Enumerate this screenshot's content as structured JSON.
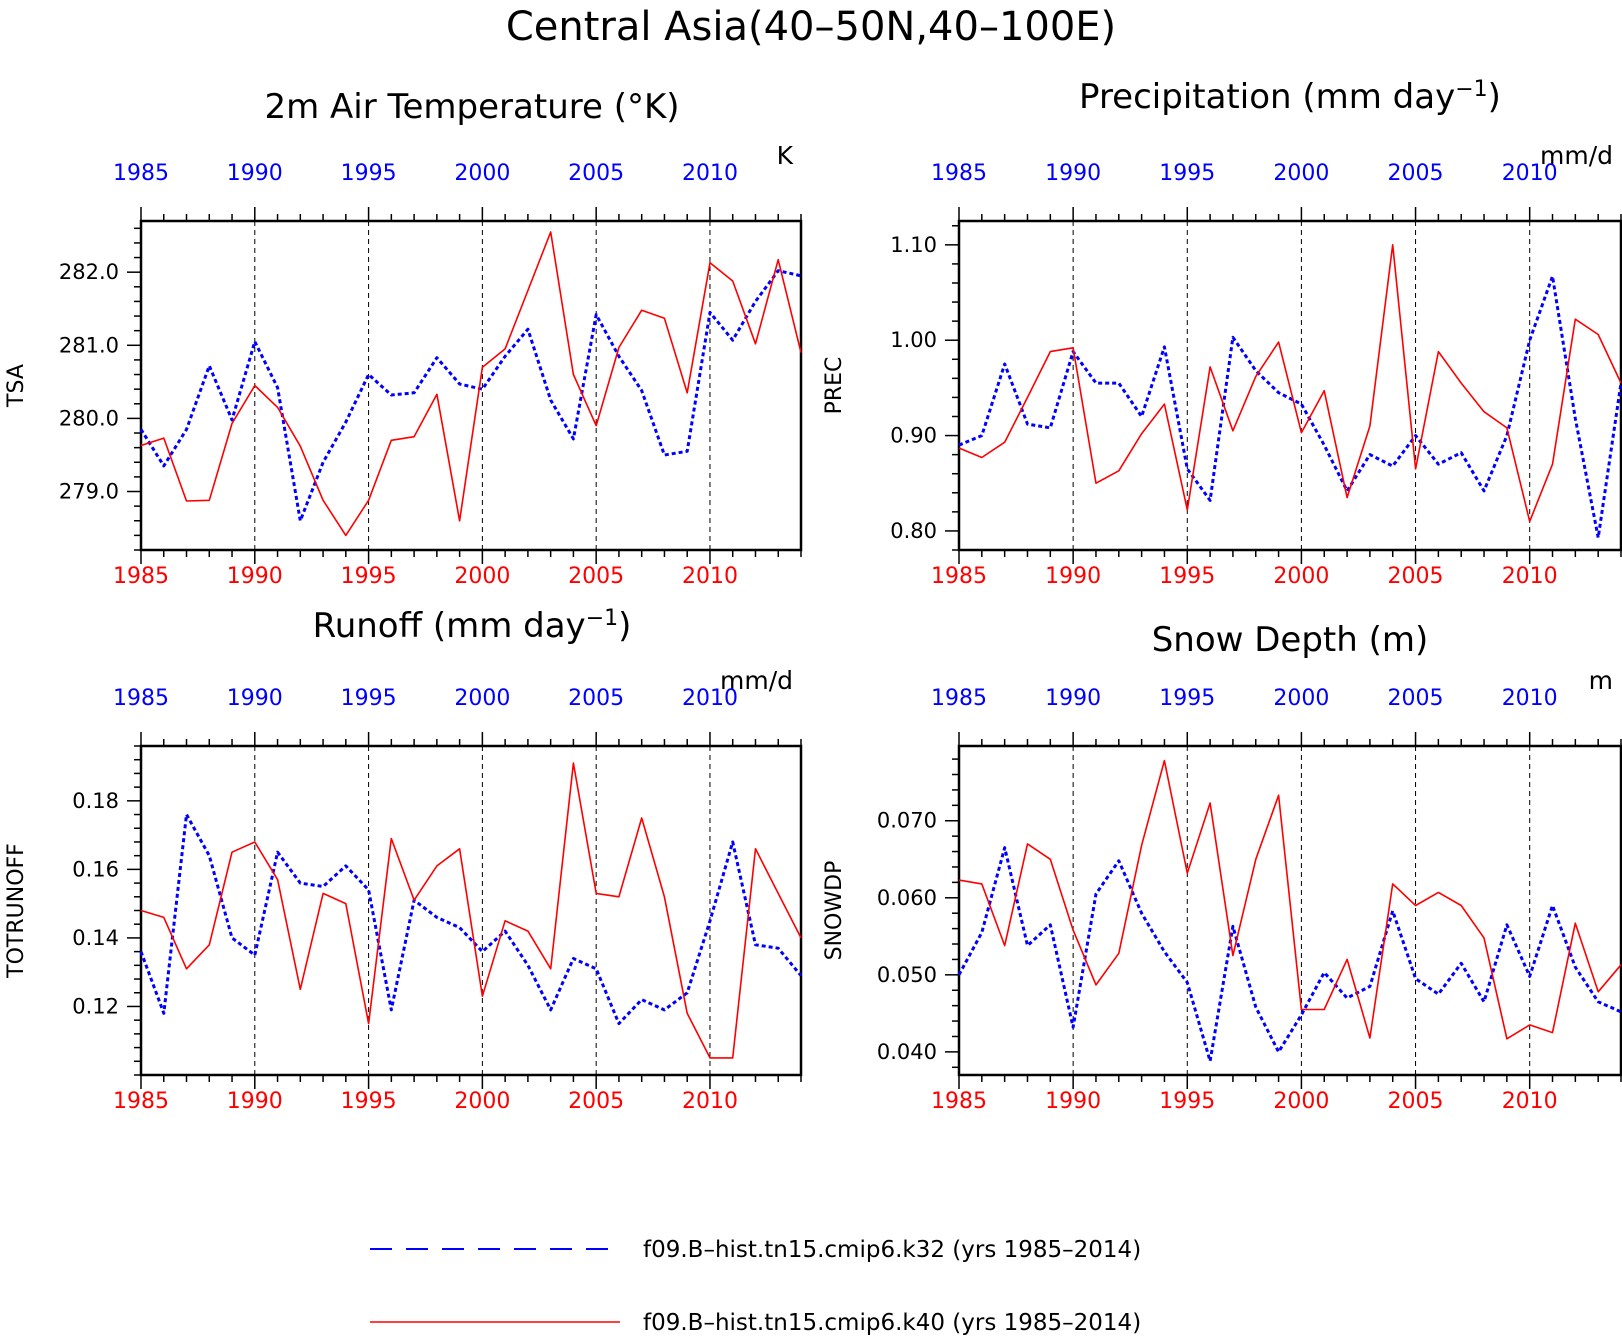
{
  "title": "Central Asia(40–50N,40–100E)",
  "colors": {
    "run_k32": "#0000ff",
    "run_k40": "#ff0000"
  },
  "legend": [
    {
      "label": "f09.B–hist.tn15.cmip6.k32 (yrs 1985–2014)",
      "color": "#0000ff",
      "style": "dashed"
    },
    {
      "label": "f09.B–hist.tn15.cmip6.k40 (yrs 1985–2014)",
      "color": "#ff0000",
      "style": "solid"
    }
  ],
  "chart_data": [
    {
      "type": "line",
      "title": "2m Air Temperature (°K)",
      "ylabel": "TSA",
      "unit": "K",
      "xlim": [
        1985,
        2014
      ],
      "ylim": [
        278.2,
        282.7
      ],
      "yticks": [
        "279.0",
        "280.0",
        "281.0",
        "282.0"
      ],
      "xticks": [
        "1985",
        "1990",
        "1995",
        "2000",
        "2005",
        "2010"
      ],
      "x": [
        1985,
        1986,
        1987,
        1988,
        1989,
        1990,
        1991,
        1992,
        1993,
        1994,
        1995,
        1996,
        1997,
        1998,
        1999,
        2000,
        2001,
        2002,
        2003,
        2004,
        2005,
        2006,
        2007,
        2008,
        2009,
        2010,
        2011,
        2012,
        2013,
        2014
      ],
      "series": [
        {
          "values": [
            279.85,
            279.35,
            279.85,
            280.72,
            279.98,
            281.05,
            280.42,
            278.6,
            279.4,
            279.95,
            280.6,
            280.32,
            280.35,
            280.83,
            280.47,
            280.4,
            280.85,
            281.22,
            280.25,
            279.72,
            281.42,
            280.85,
            280.38,
            279.5,
            279.55,
            281.45,
            281.07,
            281.6,
            282.02,
            281.95
          ]
        },
        {
          "values": [
            279.63,
            279.73,
            278.87,
            278.88,
            279.93,
            280.45,
            280.15,
            279.62,
            278.88,
            278.4,
            278.88,
            279.7,
            279.75,
            280.33,
            278.6,
            280.7,
            280.95,
            281.75,
            282.55,
            280.6,
            279.9,
            280.97,
            281.48,
            281.37,
            280.35,
            282.13,
            281.88,
            281.02,
            282.17,
            280.9
          ]
        }
      ]
    },
    {
      "type": "line",
      "title": "Precipitation (mm day",
      "title_sup": "−1",
      "title_end": ")",
      "ylabel": "PREC",
      "unit": "mm/d",
      "xlim": [
        1985,
        2014
      ],
      "ylim": [
        0.78,
        1.125
      ],
      "yticks": [
        "0.80",
        "0.90",
        "1.00",
        "1.10"
      ],
      "xticks": [
        "1985",
        "1990",
        "1995",
        "2000",
        "2005",
        "2010"
      ],
      "x": [
        1985,
        1986,
        1987,
        1988,
        1989,
        1990,
        1991,
        1992,
        1993,
        1994,
        1995,
        1996,
        1997,
        1998,
        1999,
        2000,
        2001,
        2002,
        2003,
        2004,
        2005,
        2006,
        2007,
        2008,
        2009,
        2010,
        2011,
        2012,
        2013,
        2014
      ],
      "series": [
        {
          "values": [
            0.89,
            0.9,
            0.975,
            0.912,
            0.908,
            0.988,
            0.955,
            0.955,
            0.92,
            0.993,
            0.865,
            0.832,
            1.003,
            0.968,
            0.945,
            0.933,
            0.89,
            0.842,
            0.88,
            0.868,
            0.9,
            0.87,
            0.882,
            0.842,
            0.9,
            1.0,
            1.067,
            0.918,
            0.793,
            0.955
          ]
        },
        {
          "values": [
            0.887,
            0.877,
            0.893,
            0.94,
            0.988,
            0.992,
            0.85,
            0.863,
            0.902,
            0.933,
            0.822,
            0.972,
            0.905,
            0.962,
            0.998,
            0.903,
            0.947,
            0.835,
            0.91,
            1.1,
            0.865,
            0.988,
            0.955,
            0.925,
            0.908,
            0.81,
            0.87,
            1.022,
            1.006,
            0.955
          ]
        }
      ]
    },
    {
      "type": "line",
      "title": "Runoff (mm day",
      "title_sup": "−1",
      "title_end": ")",
      "ylabel": "TOTRUNOFF",
      "unit": "mm/d",
      "xlim": [
        1985,
        2014
      ],
      "ylim": [
        0.1,
        0.196
      ],
      "yticks": [
        "0.12",
        "0.14",
        "0.16",
        "0.18"
      ],
      "xticks": [
        "1985",
        "1990",
        "1995",
        "2000",
        "2005",
        "2010"
      ],
      "x": [
        1985,
        1986,
        1987,
        1988,
        1989,
        1990,
        1991,
        1992,
        1993,
        1994,
        1995,
        1996,
        1997,
        1998,
        1999,
        2000,
        2001,
        2002,
        2003,
        2004,
        2005,
        2006,
        2007,
        2008,
        2009,
        2010,
        2011,
        2012,
        2013,
        2014
      ],
      "series": [
        {
          "values": [
            0.136,
            0.118,
            0.176,
            0.164,
            0.14,
            0.135,
            0.165,
            0.156,
            0.155,
            0.161,
            0.154,
            0.119,
            0.151,
            0.146,
            0.143,
            0.136,
            0.142,
            0.132,
            0.119,
            0.134,
            0.131,
            0.115,
            0.122,
            0.119,
            0.124,
            0.145,
            0.168,
            0.138,
            0.137,
            0.129
          ]
        },
        {
          "values": [
            0.148,
            0.146,
            0.131,
            0.138,
            0.165,
            0.168,
            0.157,
            0.125,
            0.153,
            0.15,
            0.115,
            0.169,
            0.151,
            0.161,
            0.166,
            0.123,
            0.145,
            0.142,
            0.131,
            0.191,
            0.153,
            0.152,
            0.175,
            0.152,
            0.118,
            0.105,
            0.105,
            0.166,
            0.153,
            0.14
          ]
        }
      ]
    },
    {
      "type": "line",
      "title": "Snow Depth (m)",
      "ylabel": "SNOWDP",
      "unit": "m",
      "xlim": [
        1985,
        2014
      ],
      "ylim": [
        0.037,
        0.0797
      ],
      "yticks": [
        "0.040",
        "0.050",
        "0.060",
        "0.070"
      ],
      "xticks": [
        "1985",
        "1990",
        "1995",
        "2000",
        "2005",
        "2010"
      ],
      "x": [
        1985,
        1986,
        1987,
        1988,
        1989,
        1990,
        1991,
        1992,
        1993,
        1994,
        1995,
        1996,
        1997,
        1998,
        1999,
        2000,
        2001,
        2002,
        2003,
        2004,
        2005,
        2006,
        2007,
        2008,
        2009,
        2010,
        2011,
        2012,
        2013,
        2014
      ],
      "series": [
        {
          "values": [
            0.05,
            0.0555,
            0.0665,
            0.0538,
            0.0565,
            0.0432,
            0.0605,
            0.0648,
            0.058,
            0.053,
            0.049,
            0.0388,
            0.0563,
            0.0458,
            0.04,
            0.0448,
            0.0503,
            0.047,
            0.0485,
            0.0583,
            0.0495,
            0.0475,
            0.0515,
            0.0465,
            0.0565,
            0.0498,
            0.059,
            0.051,
            0.0465,
            0.0452
          ]
        },
        {
          "values": [
            0.0623,
            0.0618,
            0.0538,
            0.067,
            0.065,
            0.0558,
            0.0487,
            0.0528,
            0.0668,
            0.0778,
            0.0632,
            0.0723,
            0.0525,
            0.065,
            0.0733,
            0.0455,
            0.0455,
            0.052,
            0.0418,
            0.0618,
            0.059,
            0.0607,
            0.059,
            0.0548,
            0.0417,
            0.0435,
            0.0425,
            0.0567,
            0.0478,
            0.0513
          ]
        }
      ]
    }
  ]
}
